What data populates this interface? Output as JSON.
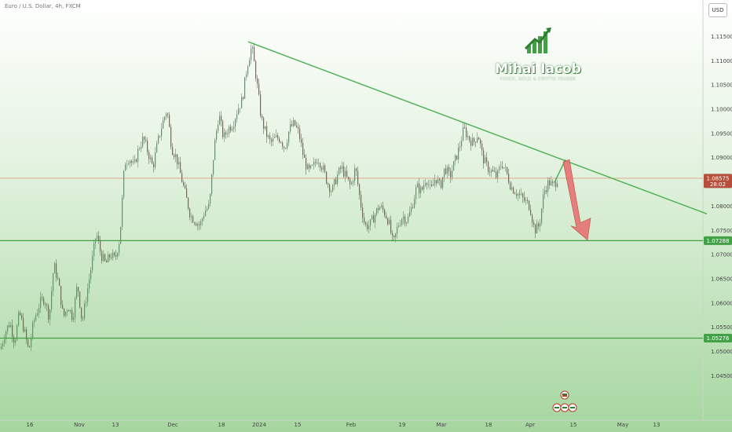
{
  "header": {
    "symbol_title": "Euro / U.S. Dollar, 4h, FXCM",
    "currency": "USD"
  },
  "logo": {
    "name": "Mihai Iacob",
    "tagline": "FOREX, GOLD & CRYPTO TRADER"
  },
  "colors": {
    "bg_top": "#ffffff",
    "bg_bottom": "#9fd39a",
    "up": "#3ea56a",
    "down": "#a2563f",
    "trendline": "#4caf50",
    "support": "#43a047",
    "arrow_fill": "#e57373",
    "current_price_line": "#e0a08a"
  },
  "chart_data": {
    "type": "candlestick",
    "y_axis": {
      "ticks": [
        "1.11500",
        "1.11000",
        "1.10500",
        "1.10000",
        "1.09500",
        "1.09000",
        "1.08000",
        "1.07500",
        "1.07000",
        "1.06500",
        "1.06000",
        "1.05500",
        "1.05000",
        "1.04500"
      ],
      "range": [
        1.0415,
        1.1175
      ]
    },
    "x_axis": {
      "ticks": [
        "16",
        "Nov",
        "13",
        "Dec",
        "18",
        "2024",
        "15",
        "Feb",
        "19",
        "Mar",
        "18",
        "Apr",
        "15",
        "May",
        "13"
      ]
    },
    "price_labels": [
      {
        "value": "1.08575",
        "sub": "28:02",
        "color": "#b5503c"
      },
      {
        "value": "1.07288",
        "color": "#43a047"
      },
      {
        "value": "1.05276",
        "color": "#43a047"
      }
    ],
    "horizontal_levels": [
      {
        "price": 1.07288,
        "label": "1.07288"
      },
      {
        "price": 1.05276,
        "label": "1.05276"
      }
    ],
    "current_price": 1.08575,
    "trendline": {
      "from": {
        "date": "Dec 28",
        "price": 1.1139
      },
      "to": {
        "date": "May 20",
        "price": 1.0784
      }
    },
    "projection": {
      "from_price": 1.0849,
      "peak_price": 1.0896,
      "target_price": 1.073
    },
    "candle_path": [
      [
        0,
        1.0505
      ],
      [
        6,
        1.054
      ],
      [
        12,
        1.056
      ],
      [
        18,
        1.052
      ],
      [
        24,
        1.058
      ],
      [
        30,
        1.0545
      ],
      [
        36,
        1.05
      ],
      [
        42,
        1.056
      ],
      [
        50,
        1.06
      ],
      [
        56,
        1.061
      ],
      [
        62,
        1.057
      ],
      [
        68,
        1.068
      ],
      [
        74,
        1.064
      ],
      [
        80,
        1.057
      ],
      [
        86,
        1.0595
      ],
      [
        92,
        1.057
      ],
      [
        98,
        1.064
      ],
      [
        104,
        1.056
      ],
      [
        110,
        1.062
      ],
      [
        116,
        1.068
      ],
      [
        122,
        1.0745
      ],
      [
        128,
        1.07
      ],
      [
        134,
        1.068
      ],
      [
        140,
        1.07
      ],
      [
        146,
        1.069
      ],
      [
        152,
        1.0735
      ],
      [
        158,
        1.089
      ],
      [
        164,
        1.09
      ],
      [
        170,
        1.088
      ],
      [
        176,
        1.092
      ],
      [
        182,
        1.094
      ],
      [
        188,
        1.091
      ],
      [
        194,
        1.088
      ],
      [
        200,
        1.093
      ],
      [
        206,
        1.097
      ],
      [
        212,
        1.1
      ],
      [
        218,
        1.092
      ],
      [
        224,
        1.09
      ],
      [
        230,
        1.086
      ],
      [
        236,
        1.082
      ],
      [
        242,
        1.078
      ],
      [
        248,
        1.077
      ],
      [
        254,
        1.076
      ],
      [
        260,
        1.079
      ],
      [
        266,
        1.08
      ],
      [
        272,
        1.092
      ],
      [
        278,
        1.099
      ],
      [
        284,
        1.094
      ],
      [
        290,
        1.096
      ],
      [
        296,
        1.097
      ],
      [
        302,
        1.1
      ],
      [
        308,
        1.102
      ],
      [
        314,
        1.109
      ],
      [
        320,
        1.113
      ],
      [
        326,
        1.106
      ],
      [
        332,
        1.098
      ],
      [
        338,
        1.095
      ],
      [
        344,
        1.093
      ],
      [
        350,
        1.094
      ],
      [
        356,
        1.094
      ],
      [
        362,
        1.092
      ],
      [
        368,
        1.096
      ],
      [
        374,
        1.097
      ],
      [
        380,
        1.095
      ],
      [
        386,
        1.09
      ],
      [
        392,
        1.087
      ],
      [
        398,
        1.088
      ],
      [
        404,
        1.09
      ],
      [
        410,
        1.088
      ],
      [
        416,
        1.085
      ],
      [
        422,
        1.083
      ],
      [
        428,
        1.086
      ],
      [
        434,
        1.088
      ],
      [
        440,
        1.086
      ],
      [
        446,
        1.084
      ],
      [
        452,
        1.088
      ],
      [
        458,
        1.081
      ],
      [
        464,
        1.076
      ],
      [
        470,
        1.076
      ],
      [
        476,
        1.078
      ],
      [
        482,
        1.08
      ],
      [
        488,
        1.079
      ],
      [
        494,
        1.077
      ],
      [
        500,
        1.072
      ],
      [
        506,
        1.076
      ],
      [
        512,
        1.078
      ],
      [
        518,
        1.077
      ],
      [
        524,
        1.08
      ],
      [
        530,
        1.084
      ],
      [
        536,
        1.083
      ],
      [
        542,
        1.086
      ],
      [
        548,
        1.083
      ],
      [
        554,
        1.086
      ],
      [
        560,
        1.084
      ],
      [
        566,
        1.088
      ],
      [
        572,
        1.086
      ],
      [
        578,
        1.089
      ],
      [
        584,
        1.092
      ],
      [
        590,
        1.096
      ],
      [
        596,
        1.094
      ],
      [
        602,
        1.093
      ],
      [
        608,
        1.095
      ],
      [
        614,
        1.09
      ],
      [
        620,
        1.088
      ],
      [
        626,
        1.087
      ],
      [
        632,
        1.086
      ],
      [
        638,
        1.089
      ],
      [
        644,
        1.087
      ],
      [
        650,
        1.084
      ],
      [
        656,
        1.083
      ],
      [
        662,
        1.082
      ],
      [
        668,
        1.081
      ],
      [
        674,
        1.08
      ],
      [
        680,
        1.075
      ],
      [
        686,
        1.076
      ],
      [
        692,
        1.083
      ],
      [
        698,
        1.085
      ],
      [
        704,
        1.084
      ],
      [
        710,
        1.086
      ]
    ]
  }
}
